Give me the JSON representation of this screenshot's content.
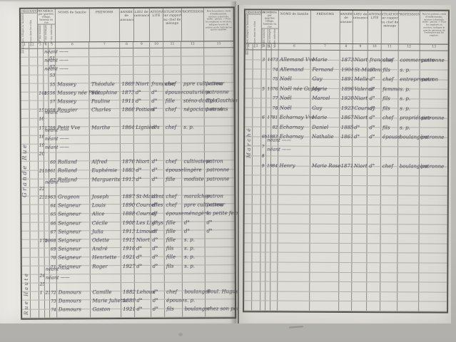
{
  "document": {
    "kind": "Scanned French census register (liste nominative de recensement)",
    "pages_visible": 2,
    "paper_color": "#e0ded8",
    "ink_color": "#55555f",
    "background_color": "#b8b7b3"
  },
  "form": {
    "headers": {
      "designation": "DÉSIGNATION",
      "designation_sub1": "des quartiers, villages ou hameaux",
      "designation_sub2": "des rues dans les villes",
      "numeros": "NUMÉROS par quartier, village, hameau ou rue",
      "numeros_sub": [
        "N° des maisons",
        "N° des ménages",
        "N° des individus"
      ],
      "noms": "NOMS de famille",
      "prenoms": "PRÉNOMS",
      "annee": "ANNÉE de naissance",
      "lieu": "LIEU de naissance",
      "nationalite": "NATIONA-LITÉ",
      "situation": "SITUATION par rapport au chef de ménage",
      "profession": "PROFESSION",
      "patron_note": "Pour les patrons, chefs d'établissement, ouvriers à domicile, isolés : patron. — Pour les employés et ouvriers, indiquer le nom du patron ou de l'entreprise qui les emploie.",
      "column_numbers": [
        "1",
        "2",
        "3",
        "4",
        "5",
        "6",
        "7",
        "8",
        "9",
        "10",
        "11",
        "12",
        "13"
      ]
    }
  },
  "pages": [
    {
      "side": "left",
      "street_labels": [
        "Grande Rue",
        "Rue Haute"
      ],
      "empty_row_count": 1,
      "rows": [
        {
          "ind": "51",
          "neant": true
        },
        {
          "ind": "52",
          "neant": true
        },
        {
          "ind": "53",
          "neant": true
        },
        {
          "ind": "55",
          "nom": "Massey",
          "prenom": "Théodule",
          "annee": "1869",
          "lieu": "Niort",
          "nat": "française",
          "situation": "chef",
          "profession": "ppre cultivateur",
          "patron": "patron"
        },
        {
          "maison": "14b",
          "menage": "15",
          "ind": "56",
          "nom": "Massey née Petit",
          "prenom": "Séraphine",
          "annee": "1873",
          "lieu": "d°",
          "nat": "d°",
          "situation": "épouse",
          "profession": "couturière",
          "patron": "patronne"
        },
        {
          "ind": "57",
          "nom": "Massey",
          "prenom": "Pauline",
          "annee": "1911",
          "lieu": "d°",
          "nat": "d°",
          "situation": "fille",
          "profession": "sténo-dactylo",
          "patron": "Ets Gauthier"
        },
        {
          "maison": "15",
          "menage": "16",
          "ind": "58",
          "nom": "Rougier",
          "prenom": "Charles",
          "annee": "1866",
          "lieu": "Poitiers",
          "nat": "d°",
          "situation": "chef",
          "profession": "négociant en vins",
          "patron": "patron"
        },
        {
          "maison": "16",
          "neant": true
        },
        {
          "maison": "17",
          "menage": "17",
          "ind": "59",
          "nom": "Petit Vve",
          "prenom": "Marthe",
          "annee": "1864",
          "lieu": "Lignières",
          "nat": "d°",
          "situation": "chef",
          "profession": "s. p.",
          "patron": ""
        },
        {
          "maison": "18",
          "neant": true
        },
        {
          "maison": "19",
          "neant": true
        },
        {
          "maison": "20",
          "neant": true
        },
        {
          "ind": "60",
          "nom": "Rolland",
          "prenom": "Alfred",
          "annee": "1876",
          "lieu": "Niort",
          "nat": "d°",
          "situation": "chef",
          "profession": "cultivateur",
          "patron": "patron"
        },
        {
          "maison": "21",
          "menage": "18",
          "ind": "61",
          "nom": "Rolland",
          "prenom": "Euphémie",
          "annee": "1883",
          "lieu": "d°",
          "nat": "d°",
          "situation": "épouse",
          "profession": "lingère",
          "patron": "patronne"
        },
        {
          "ind": "62",
          "nom": "Rolland",
          "prenom": "Marguerite",
          "annee": "1913",
          "lieu": "d°",
          "nat": "d°",
          "situation": "fille",
          "profession": "modiste",
          "patron": "patronne"
        },
        {
          "maison": "22",
          "neant": true
        },
        {
          "maison": "23",
          "menage": "19",
          "ind": "63",
          "nom": "Grageon",
          "prenom": "Joseph",
          "annee": "1887",
          "lieu": "St-Maixent",
          "nat": "d°",
          "situation": "chef",
          "profession": "maraîcher",
          "patron": "patron"
        },
        {
          "ind": "64",
          "nom": "Seigneur",
          "prenom": "Louis",
          "annee": "1890",
          "lieu": "Courcelles",
          "nat": "d°",
          "situation": "chef",
          "profession": "ppre cultivateur",
          "patron": "patron"
        },
        {
          "ind": "65",
          "nom": "Seigneur",
          "prenom": "Alice",
          "annee": "1888",
          "lieu": "Coursay",
          "nat": "d°",
          "situation": "épouse",
          "profession": "ménagère",
          "patron": "la petite ferme"
        },
        {
          "ind": "66",
          "nom": "Seigneur",
          "prenom": "Cécile",
          "annee": "1908",
          "lieu": "Les Lignys",
          "nat": "d°",
          "situation": "fille",
          "profession": "d°",
          "patron": "d°"
        },
        {
          "ind": "67",
          "nom": "Seigneur",
          "prenom": "Julia",
          "annee": "1913",
          "lieu": "Limours",
          "nat": "d°",
          "situation": "fille",
          "profession": "d°",
          "patron": "d°"
        },
        {
          "maison": "17b",
          "menage": "20",
          "ind": "68",
          "nom": "Seigneur",
          "prenom": "Odette",
          "annee": "1915",
          "lieu": "Niort",
          "nat": "d°",
          "situation": "fille",
          "profession": "s. p.",
          "patron": ""
        },
        {
          "ind": "69",
          "nom": "Seigneur",
          "prenom": "André",
          "annee": "1916",
          "lieu": "d°",
          "nat": "d°",
          "situation": "fils",
          "profession": "s. p.",
          "patron": ""
        },
        {
          "ind": "70",
          "nom": "Seigneur",
          "prenom": "Henriette",
          "annee": "1921",
          "lieu": "d°",
          "nat": "d°",
          "situation": "fille",
          "profession": "s. p.",
          "patron": ""
        },
        {
          "ind": "71",
          "nom": "Seigneur",
          "prenom": "Roger",
          "annee": "1927",
          "lieu": "d°",
          "nat": "d°",
          "situation": "fils",
          "profession": "s. p.",
          "patron": ""
        },
        {
          "maison": "24",
          "neant": true
        },
        {
          "maison": "25",
          "neant": true
        },
        {
          "maison": "1",
          "menage": "21",
          "ind": "72",
          "nom": "Damours",
          "prenom": "Camille",
          "annee": "1882",
          "lieu": "Lehoux",
          "nat": "d°",
          "situation": "chef",
          "profession": "boulanger",
          "patron": "Boul. Huguet & fils"
        },
        {
          "ind": "73",
          "nom": "Damours",
          "prenom": "Marie Juliette",
          "annee": "1889",
          "lieu": "d°",
          "nat": "d°",
          "situation": "épouse",
          "profession": "s. p.",
          "patron": ""
        },
        {
          "ind": "74",
          "nom": "Damours",
          "prenom": "Gaston",
          "annee": "1921",
          "lieu": "d°",
          "nat": "d°",
          "situation": "fils",
          "profession": "boulanger",
          "patron": "chez son père"
        }
      ]
    },
    {
      "side": "right",
      "street_labels": [
        "Marché"
      ],
      "empty_row_count": 15,
      "rows": [
        {
          "maison": "3",
          "menage": "14",
          "ind": "73",
          "nom": "Allemand Vve",
          "prenom": "Marie",
          "annee": "1873",
          "lieu": "Niort",
          "nat": "française",
          "situation": "chef",
          "profession": "commerçante",
          "patron": "patronne"
        },
        {
          "ind": "74",
          "nom": "Allemand",
          "prenom": "Fernand",
          "annee": "1904",
          "lieu": "St-Maixent",
          "nat": "d°",
          "situation": "fils",
          "profession": "s. p.",
          "patron": ""
        },
        {
          "ind": "75",
          "nom": "Noël",
          "prenom": "Guy",
          "annee": "1891",
          "lieu": "Melle",
          "nat": "d°",
          "situation": "chef",
          "profession": "entrepreneur",
          "patron": "patron"
        },
        {
          "maison": "5",
          "menage": "15",
          "ind": "76",
          "nom": "Noël née Guppy",
          "prenom": "Marie",
          "annee": "1896",
          "lieu": "Valence",
          "nat": "d°",
          "situation": "femme",
          "profession": "s. p.",
          "patron": ""
        },
        {
          "ind": "77",
          "nom": "Noël",
          "prenom": "Marcel",
          "annee": "1920",
          "lieu": "Niort",
          "nat": "d°",
          "situation": "fils",
          "profession": "s. p.",
          "patron": ""
        },
        {
          "ind": "78",
          "nom": "Noël",
          "prenom": "Guy",
          "annee": "1923",
          "lieu": "Coursay",
          "nat": "d°",
          "situation": "fils",
          "profession": "s. p.",
          "patron": ""
        },
        {
          "maison": "6",
          "menage": "17",
          "ind": "81",
          "nom": "Echarnay Vve",
          "prenom": "Marie",
          "annee": "1867",
          "lieu": "Niort",
          "nat": "d°",
          "situation": "chef",
          "profession": "propriétaire",
          "patron": "patronne"
        },
        {
          "ind": "82",
          "nom": "Echarnay",
          "prenom": "Daniel",
          "annee": "1885",
          "lieu": "d°",
          "nat": "d°",
          "situation": "fils",
          "profession": "s. p.",
          "patron": ""
        },
        {
          "maison": "6b",
          "menage": "18",
          "ind": "83",
          "nom": "Echarnay",
          "prenom": "Nathalie",
          "annee": "1861",
          "lieu": "d°",
          "nat": "d°",
          "situation": "épouse",
          "profession": "boulangère",
          "patron": "patronne"
        },
        {
          "maison": "7",
          "neant": true
        },
        {
          "maison": "8",
          "neant": true
        },
        {
          "maison": "9",
          "menage": "19",
          "ind": "84",
          "nom": "Henry",
          "prenom": "Marie Rose",
          "annee": "1871",
          "lieu": "Niort",
          "nat": "d°",
          "situation": "chef",
          "profession": "boulangère",
          "patron": "patronne"
        }
      ]
    }
  ]
}
